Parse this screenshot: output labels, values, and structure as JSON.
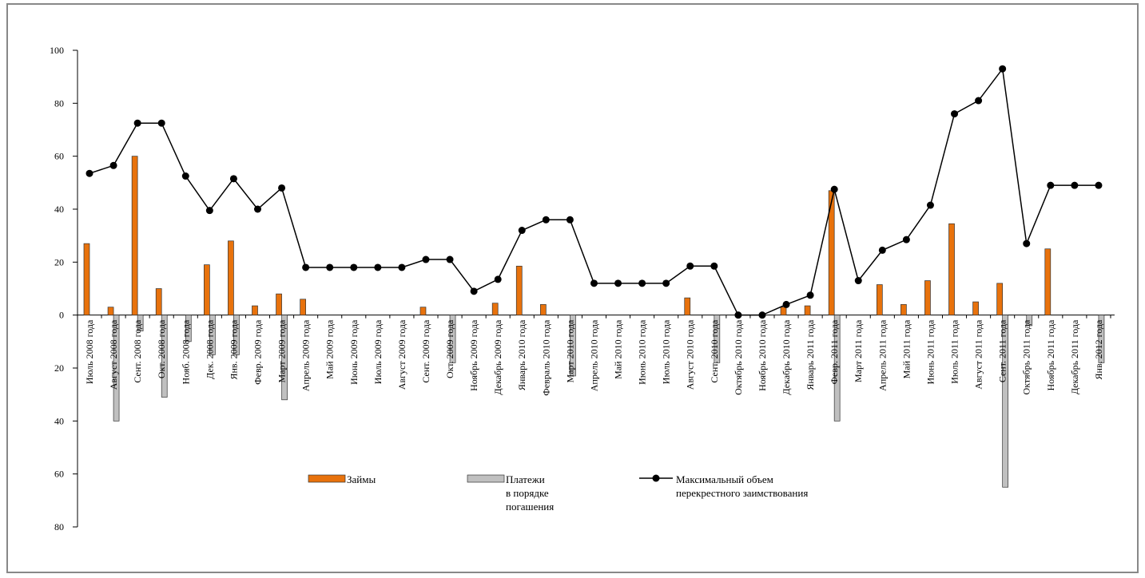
{
  "chart_data": {
    "type": "bar-line",
    "categories": [
      "Июль 2008 года",
      "Август 2008 года",
      "Сент. 2008 года",
      "Окт. 2008 года",
      "Нояб. 2008 года",
      "Дек. 2008 года",
      "Янв. 2009 года",
      "Февр. 2009 года",
      "Март 2009 года",
      "Апрель 2009 года",
      "Май 2009 года",
      "Июнь 2009 года",
      "Июль 2009 года",
      "Август 2009 года",
      "Сент. 2009 года",
      "Окт. 2009 года",
      "Ноябрь 2009 года",
      "Декабрь 2009 года",
      "Январь 2010 года",
      "Февраль 2010 года",
      "Март 2010 года",
      "Апрель 2010 года",
      "Май 2010 года",
      "Июнь 2010 года",
      "Июль 2010 года",
      "Август 2010 года",
      "Сент. 2010 года",
      "Октябрь 2010 года",
      "Ноябрь 2010 года",
      "Декабрь 2010 года",
      "Январь 2011 года",
      "Февр. 2011 года",
      "Март 2011 года",
      "Апрель 2011 года",
      "Май 2011 года",
      "Июнь 2011 года",
      "Июль 2011 года",
      "Август 2011 года",
      "Сент. 2011 года",
      "Октябрь 2011 года",
      "Ноябрь 2011 года",
      "Декабрь 2011 года",
      "Янв. 2012 года"
    ],
    "series": [
      {
        "name": "Займы",
        "kind": "bar",
        "color": "#e8720c",
        "values": [
          27,
          3,
          60,
          10,
          0,
          19,
          28,
          3.5,
          8,
          6,
          0,
          0,
          0,
          0,
          3,
          0,
          0,
          4.5,
          18.5,
          4,
          0,
          0,
          0,
          0,
          0,
          6.5,
          0,
          0,
          0,
          3,
          3.5,
          47,
          0,
          11.5,
          4,
          13,
          34.5,
          5,
          12,
          0,
          25,
          0,
          0
        ]
      },
      {
        "name": "Платежи\nв порядке\nпогашения",
        "kind": "bar",
        "color": "#c0c0c0",
        "values": [
          0,
          -40,
          -6,
          -31,
          -10,
          -15,
          -15,
          0,
          -32,
          0,
          0,
          0,
          0,
          0,
          0,
          -18,
          0,
          0,
          0,
          0,
          -23,
          0,
          0,
          0,
          0,
          0,
          -18,
          0,
          0,
          0,
          0,
          -40,
          0,
          0,
          0,
          0,
          0,
          0,
          -65,
          -4,
          0,
          0,
          -18
        ]
      },
      {
        "name": "Максимальный объем\nперекрестного заимствования",
        "kind": "line",
        "color": "#000000",
        "values": [
          53.5,
          56.5,
          72.5,
          72.5,
          52.5,
          39.5,
          51.5,
          40,
          48,
          18,
          18,
          18,
          18,
          18,
          21,
          21,
          9,
          13.5,
          32,
          36,
          36,
          12,
          12,
          12,
          12,
          18.5,
          18.5,
          0,
          0,
          4,
          7.5,
          47.5,
          13,
          24.5,
          28.5,
          41.5,
          76,
          81,
          93,
          27,
          49,
          49,
          49
        ]
      }
    ],
    "ylim": [
      -80,
      100
    ],
    "yticks": [
      100,
      80,
      60,
      40,
      20,
      0,
      {
        "value": -20,
        "label": "20"
      },
      {
        "value": -40,
        "label": "40"
      },
      {
        "value": -60,
        "label": "60"
      },
      {
        "value": -80,
        "label": "80"
      }
    ]
  }
}
